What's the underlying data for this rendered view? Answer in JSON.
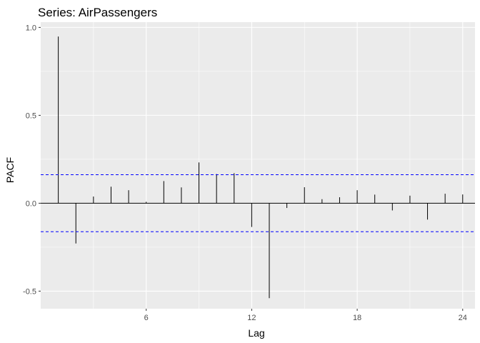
{
  "chart_data": {
    "type": "bar",
    "title": "Series: AirPassengers",
    "xlabel": "Lag",
    "ylabel": "PACF",
    "x": [
      1,
      2,
      3,
      4,
      5,
      6,
      7,
      8,
      9,
      10,
      11,
      12,
      13,
      14,
      15,
      16,
      17,
      18,
      19,
      20,
      21,
      22,
      23,
      24
    ],
    "values": [
      0.948,
      -0.229,
      0.038,
      0.094,
      0.074,
      0.008,
      0.126,
      0.09,
      0.232,
      0.166,
      0.171,
      -0.135,
      -0.54,
      -0.027,
      0.091,
      0.023,
      0.034,
      0.074,
      0.049,
      -0.041,
      0.043,
      -0.093,
      0.054,
      0.05
    ],
    "confidence_limit": 0.162,
    "xlim": [
      0,
      24.7
    ],
    "ylim": [
      -0.6,
      1.03
    ],
    "x_ticks": [
      6,
      12,
      18,
      24
    ],
    "x_tick_labels": [
      "6",
      "12",
      "18",
      "24"
    ],
    "y_ticks": [
      -0.5,
      0.0,
      0.5,
      1.0
    ],
    "y_tick_labels": [
      "-0.5",
      "0.0",
      "0.5",
      "1.0"
    ],
    "grid": true,
    "colors": {
      "panel": "#ebebeb",
      "grid": "#ffffff",
      "bar": "#000000",
      "confidence": "#0000ff"
    }
  }
}
